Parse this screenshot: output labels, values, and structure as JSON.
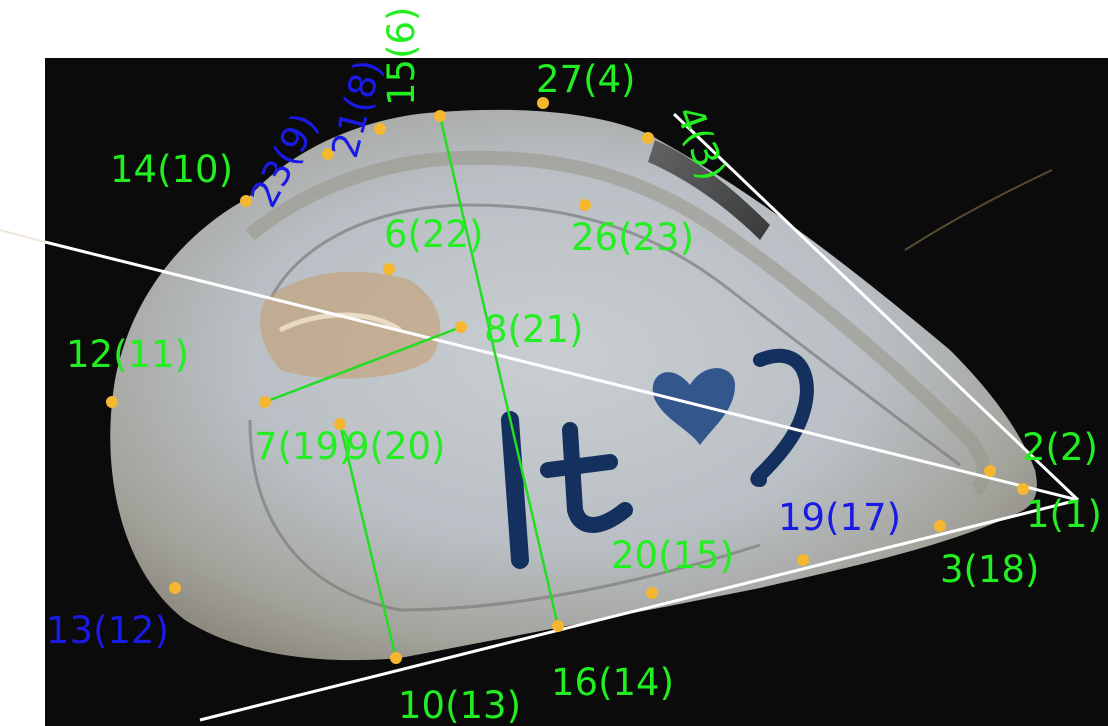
{
  "colors": {
    "background_photo": "#0b0b0c",
    "shell_fill": "#bcc2c6",
    "shell_rim": "#8e8a80",
    "ink": "#14305e",
    "label_green": "#22ee22",
    "label_blue": "#1a1ae6",
    "landmark_dot": "#f5b630",
    "measure_green": "#22dd22",
    "reference_white": "#ffffff"
  },
  "landmarks": [
    {
      "id": "lm-1",
      "label": "1(1)",
      "color": "green"
    },
    {
      "id": "lm-2",
      "label": "2(2)",
      "color": "green"
    },
    {
      "id": "lm-3",
      "label": "3(18)",
      "color": "green"
    },
    {
      "id": "lm-4",
      "label": "4(3)",
      "color": "green"
    },
    {
      "id": "lm-6",
      "label": "6(22)",
      "color": "green"
    },
    {
      "id": "lm-7",
      "label": "7(19)",
      "color": "green"
    },
    {
      "id": "lm-8",
      "label": "8(21)",
      "color": "green"
    },
    {
      "id": "lm-9",
      "label": "9(20)",
      "color": "green"
    },
    {
      "id": "lm-10",
      "label": "10(13)",
      "color": "green"
    },
    {
      "id": "lm-12",
      "label": "12(11)",
      "color": "green"
    },
    {
      "id": "lm-13",
      "label": "13(12)",
      "color": "blue"
    },
    {
      "id": "lm-14",
      "label": "14(10)",
      "color": "green"
    },
    {
      "id": "lm-15",
      "label": "15(6)",
      "color": "green"
    },
    {
      "id": "lm-16",
      "label": "16(14)",
      "color": "green"
    },
    {
      "id": "lm-19",
      "label": "19(17)",
      "color": "blue"
    },
    {
      "id": "lm-20",
      "label": "20(15)",
      "color": "green"
    },
    {
      "id": "lm-21",
      "label": "21(8)",
      "color": "blue"
    },
    {
      "id": "lm-23",
      "label": "23(9)",
      "color": "blue"
    },
    {
      "id": "lm-26",
      "label": "26(23)",
      "color": "green"
    },
    {
      "id": "lm-27",
      "label": "27(4)",
      "color": "green"
    }
  ]
}
